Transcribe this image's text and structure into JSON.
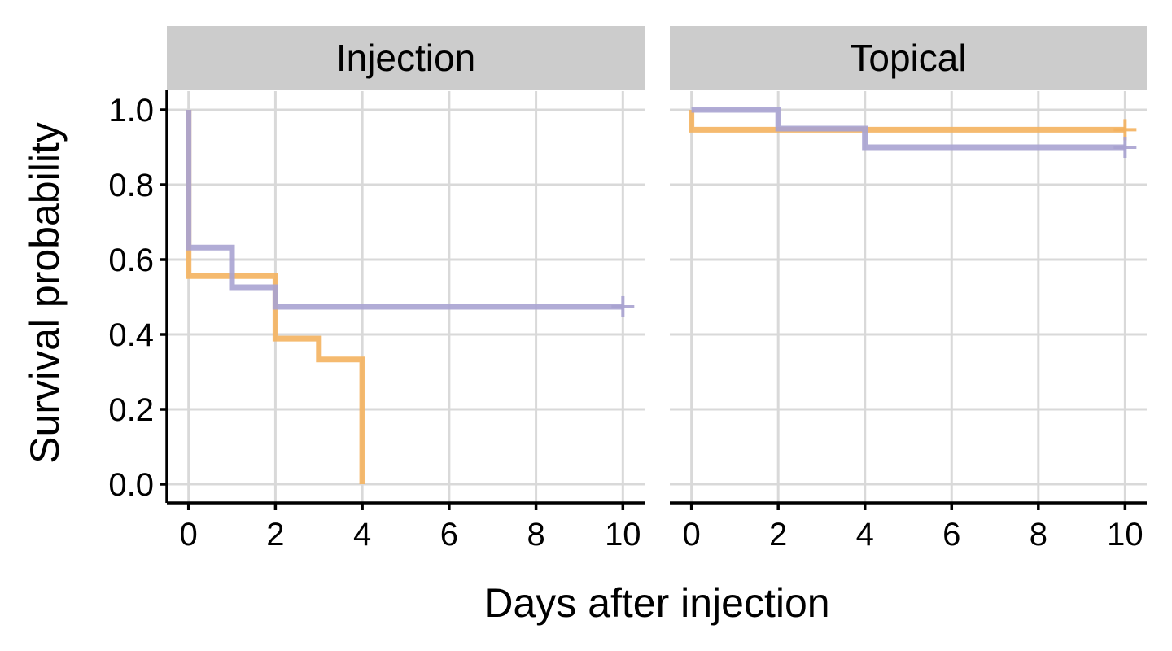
{
  "chart_data": {
    "type": "line",
    "subtype": "kaplan-meier step curves, faceted",
    "xlabel": "Days after injection",
    "ylabel": "Survival probability",
    "xlim": [
      -0.5,
      10.5
    ],
    "ylim": [
      -0.05,
      1.05
    ],
    "x_ticks": [
      0,
      2,
      4,
      6,
      8,
      10
    ],
    "y_ticks": [
      0.0,
      0.2,
      0.4,
      0.6,
      0.8,
      1.0
    ],
    "x_tick_labels": [
      "0",
      "2",
      "4",
      "6",
      "8",
      "10"
    ],
    "y_tick_labels": [
      "0.0",
      "0.2",
      "0.4",
      "0.6",
      "0.8",
      "1.0"
    ],
    "grid": true,
    "legend": "none",
    "series_colors": [
      "#f4b25f",
      "#a9a3d1"
    ],
    "panels": [
      {
        "title": "Injection",
        "series": [
          {
            "color": "#f4b25f",
            "steps": [
              [
                0,
                1.0
              ],
              [
                0,
                0.556
              ],
              [
                2,
                0.389
              ],
              [
                3,
                0.333
              ],
              [
                4,
                0.0
              ]
            ],
            "end_x": 4,
            "censor": []
          },
          {
            "color": "#a9a3d1",
            "steps": [
              [
                0,
                1.0
              ],
              [
                0,
                0.632
              ],
              [
                1,
                0.526
              ],
              [
                2,
                0.474
              ]
            ],
            "end_x": 10,
            "censor": [
              [
                10,
                0.474
              ]
            ]
          }
        ]
      },
      {
        "title": "Topical",
        "series": [
          {
            "color": "#f4b25f",
            "steps": [
              [
                0,
                1.0
              ],
              [
                0,
                0.947
              ]
            ],
            "end_x": 10,
            "censor": [
              [
                10,
                0.947
              ]
            ]
          },
          {
            "color": "#a9a3d1",
            "steps": [
              [
                0,
                1.0
              ],
              [
                2,
                0.95
              ],
              [
                4,
                0.9
              ]
            ],
            "end_x": 10,
            "censor": [
              [
                10,
                0.9
              ]
            ]
          }
        ]
      }
    ]
  }
}
